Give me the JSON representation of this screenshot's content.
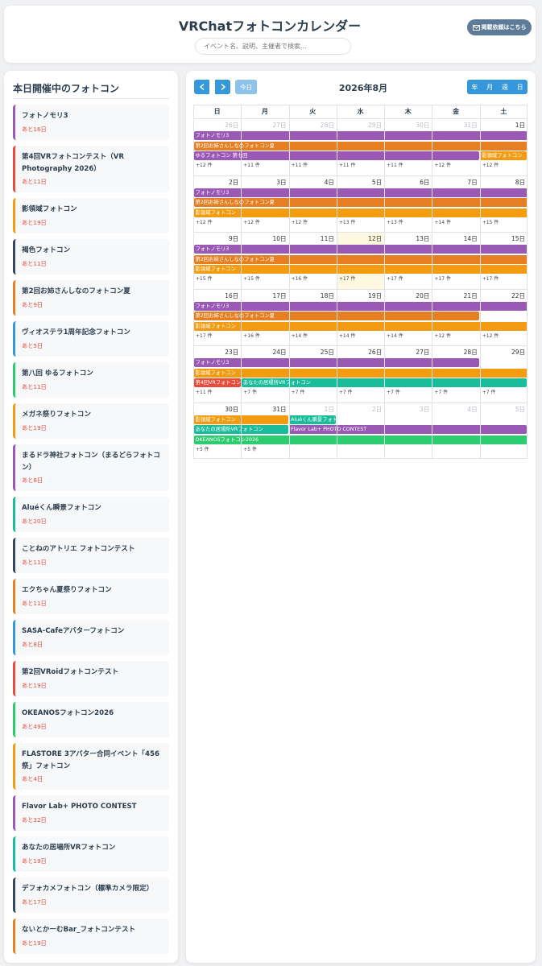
{
  "header": {
    "title": "VRChatフォトコンカレンダー",
    "search_placeholder": "イベント名、説明、主催者で検索...",
    "request_icon": "mail-icon",
    "request_label": "掲載依頼はこちら"
  },
  "sidebar": {
    "title": "本日開催中のフォトコン",
    "items": [
      {
        "name": "フォトノモリ3",
        "remaining": "あと16日",
        "color": "#9b59b6"
      },
      {
        "name": "第4回VRフォトコンテスト（VR Photography 2026）",
        "remaining": "あと11日",
        "color": "#e74c3c"
      },
      {
        "name": "影領域フォトコン",
        "remaining": "あと19日",
        "color": "#f39c12"
      },
      {
        "name": "褐色フォトコン",
        "remaining": "あと11日",
        "color": "#34495e"
      },
      {
        "name": "第2回お姉さんしなのフォトコン夏",
        "remaining": "あと9日",
        "color": "#e67e22"
      },
      {
        "name": "ヴィオステラ1周年記念フォトコン",
        "remaining": "あと5日",
        "color": "#3498db"
      },
      {
        "name": "第八回 ゆるフォトコン",
        "remaining": "あと11日",
        "color": "#2ecc71"
      },
      {
        "name": "メガネ祭りフォトコン",
        "remaining": "あと19日",
        "color": "#f39c12"
      },
      {
        "name": "まるドラ神社フォトコン（まるどらフォトコン）",
        "remaining": "あと8日",
        "color": "#9b59b6"
      },
      {
        "name": "Aluéくん瞬景フォトコン",
        "remaining": "あと20日",
        "color": "#1abc9c"
      },
      {
        "name": "ことねのアトリエ フォトコンテスト",
        "remaining": "あと11日",
        "color": "#34495e"
      },
      {
        "name": "エクちゃん夏祭りフォトコン",
        "remaining": "あと11日",
        "color": "#e67e22"
      },
      {
        "name": "SASA-Cafeアバターフォトコン",
        "remaining": "あと8日",
        "color": "#3498db"
      },
      {
        "name": "第2回VRoidフォトコンテスト",
        "remaining": "あと19日",
        "color": "#e74c3c"
      },
      {
        "name": "OKEANOSフォトコン2026",
        "remaining": "あと49日",
        "color": "#2ecc71"
      },
      {
        "name": "FLASTORE 3アバター合同イベント「456祭」フォトコン",
        "remaining": "あと4日",
        "color": "#f39c12"
      },
      {
        "name": "Flavor Lab+ PHOTO CONTEST",
        "remaining": "あと32日",
        "color": "#9b59b6"
      },
      {
        "name": "あなたの居場所VRフォトコン",
        "remaining": "あと19日",
        "color": "#1abc9c"
      },
      {
        "name": "デフォカメフォトコン（標準カメラ限定）",
        "remaining": "あと17日",
        "color": "#34495e"
      },
      {
        "name": "ないとかーむBar_フォトコンテスト",
        "remaining": "あと19日",
        "color": "#e67e22"
      }
    ]
  },
  "calendar": {
    "prev_icon": "chevron-left-icon",
    "next_icon": "chevron-right-icon",
    "today_label": "今日",
    "month_label": "2026年8月",
    "views": [
      "年",
      "月",
      "週",
      "日"
    ],
    "weekdays": [
      "日",
      "月",
      "火",
      "水",
      "木",
      "金",
      "土"
    ],
    "weeks": [
      {
        "days": [
          "26日",
          "27日",
          "28日",
          "29日",
          "30日",
          "31日",
          "1日"
        ],
        "other": [
          true,
          true,
          true,
          true,
          true,
          true,
          false
        ],
        "events": [
          {
            "title": "フォトノモリ3",
            "start": 0,
            "span": 7,
            "lane": 0,
            "color": "#9b59b6"
          },
          {
            "title": "第2回お姉さんしなのフォトコン夏",
            "start": 0,
            "span": 7,
            "lane": 1,
            "color": "#e67e22"
          },
          {
            "title": "ゆるフォトコン 第七回",
            "start": 0,
            "span": 6,
            "lane": 2,
            "color": "#9b59b6"
          },
          {
            "title": "影領域フォトコン",
            "start": 6,
            "span": 1,
            "lane": 2,
            "color": "#f39c12"
          }
        ],
        "more": [
          "+12 件",
          "+11 件",
          "+11 件",
          "+11 件",
          "+11 件",
          "+12 件",
          "+12 件"
        ]
      },
      {
        "days": [
          "2日",
          "3日",
          "4日",
          "5日",
          "6日",
          "7日",
          "8日"
        ],
        "other": [
          false,
          false,
          false,
          false,
          false,
          false,
          false
        ],
        "events": [
          {
            "title": "フォトノモリ3",
            "start": 0,
            "span": 7,
            "lane": 0,
            "color": "#9b59b6"
          },
          {
            "title": "第2回お姉さんしなのフォトコン夏",
            "start": 0,
            "span": 7,
            "lane": 1,
            "color": "#e67e22"
          },
          {
            "title": "影領域フォトコン",
            "start": 0,
            "span": 7,
            "lane": 2,
            "color": "#f39c12"
          }
        ],
        "more": [
          "+12 件",
          "+12 件",
          "+12 件",
          "+13 件",
          "+13 件",
          "+14 件",
          "+15 件"
        ]
      },
      {
        "days": [
          "9日",
          "10日",
          "11日",
          "12日",
          "13日",
          "14日",
          "15日"
        ],
        "other": [
          false,
          false,
          false,
          false,
          false,
          false,
          false
        ],
        "events": [
          {
            "title": "フォトノモリ3",
            "start": 0,
            "span": 7,
            "lane": 0,
            "color": "#9b59b6"
          },
          {
            "title": "第2回お姉さんしなのフォトコン夏",
            "start": 0,
            "span": 7,
            "lane": 1,
            "color": "#e67e22"
          },
          {
            "title": "影領域フォトコン",
            "start": 0,
            "span": 7,
            "lane": 2,
            "color": "#f39c12"
          }
        ],
        "more": [
          "+15 件",
          "+15 件",
          "+16 件",
          "+17 件",
          "+17 件",
          "+17 件",
          "+17 件"
        ]
      },
      {
        "days": [
          "16日",
          "17日",
          "18日",
          "19日",
          "20日",
          "21日",
          "22日"
        ],
        "other": [
          false,
          false,
          false,
          false,
          false,
          false,
          false
        ],
        "events": [
          {
            "title": "フォトノモリ3",
            "start": 0,
            "span": 7,
            "lane": 0,
            "color": "#9b59b6"
          },
          {
            "title": "第2回お姉さんしなのフォトコン夏",
            "start": 0,
            "span": 6,
            "lane": 1,
            "color": "#e67e22"
          },
          {
            "title": "影領域フォトコン",
            "start": 0,
            "span": 7,
            "lane": 2,
            "color": "#f39c12"
          }
        ],
        "more": [
          "+17 件",
          "+16 件",
          "+14 件",
          "+14 件",
          "+14 件",
          "+12 件",
          "+12 件"
        ]
      },
      {
        "days": [
          "23日",
          "24日",
          "25日",
          "26日",
          "27日",
          "28日",
          "29日"
        ],
        "other": [
          false,
          false,
          false,
          false,
          false,
          false,
          false
        ],
        "events": [
          {
            "title": "フォトノモリ3",
            "start": 0,
            "span": 6,
            "lane": 0,
            "color": "#9b59b6"
          },
          {
            "title": "影領域フォトコン",
            "start": 0,
            "span": 7,
            "lane": 1,
            "color": "#f39c12"
          },
          {
            "title": "第4回VRフォトコン",
            "start": 0,
            "span": 1,
            "lane": 2,
            "color": "#e74c3c"
          },
          {
            "title": "あなたの居場所VRフォトコン",
            "start": 1,
            "span": 6,
            "lane": 2,
            "color": "#1abc9c"
          }
        ],
        "more": [
          "+11 件",
          "+7 件",
          "+7 件",
          "+7 件",
          "+7 件",
          "+7 件",
          "+7 件"
        ]
      },
      {
        "days": [
          "30日",
          "31日",
          "1日",
          "2日",
          "3日",
          "4日",
          "5日"
        ],
        "other": [
          false,
          false,
          true,
          true,
          true,
          true,
          true
        ],
        "events": [
          {
            "title": "影領域フォトコン",
            "start": 0,
            "span": 2,
            "lane": 0,
            "color": "#f39c12"
          },
          {
            "title": "Aluéくん瞬景フォトコン",
            "start": 2,
            "span": 1,
            "lane": 0,
            "color": "#1abc9c"
          },
          {
            "title": "あなたの居場所VRフォトコン",
            "start": 0,
            "span": 2,
            "lane": 1,
            "color": "#1abc9c"
          },
          {
            "title": "Flavor Lab+ PHOTO CONTEST",
            "start": 2,
            "span": 5,
            "lane": 1,
            "color": "#9b59b6"
          },
          {
            "title": "OKEANOSフォトコン2026",
            "start": 0,
            "span": 7,
            "lane": 2,
            "color": "#2ecc71"
          }
        ],
        "more": [
          "+5 件",
          "+5 件",
          "",
          "",
          "",
          "",
          ""
        ]
      }
    ]
  }
}
